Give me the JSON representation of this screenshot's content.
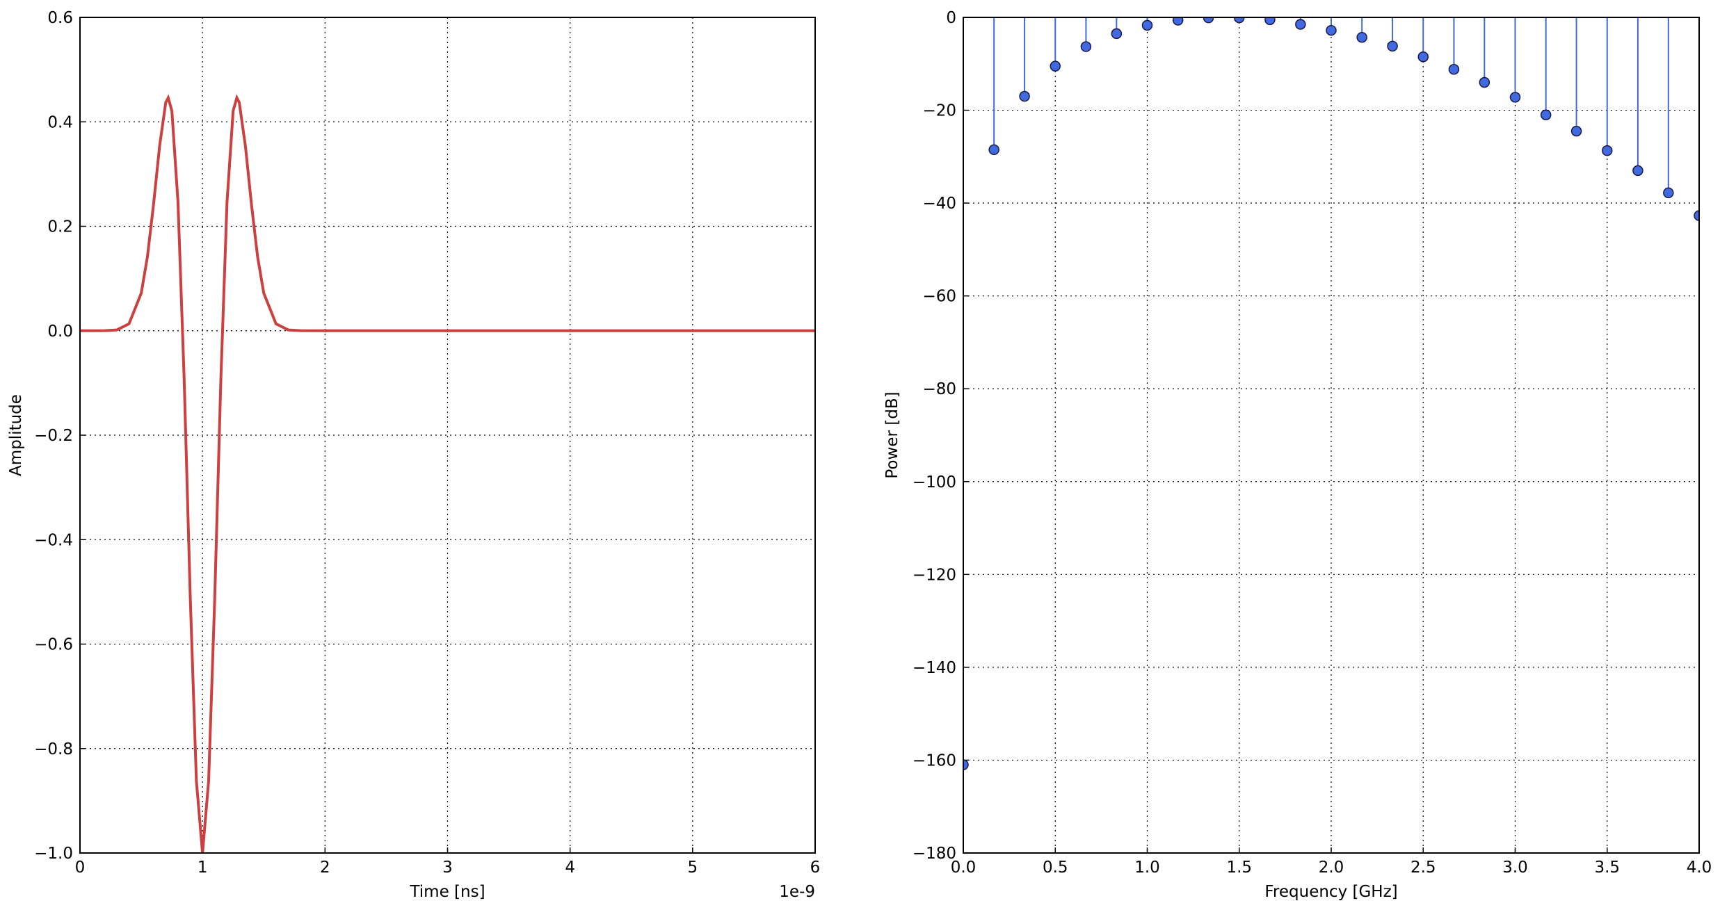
{
  "chart_data": [
    {
      "type": "line",
      "xlabel": "Time [ns]",
      "ylabel": "Amplitude",
      "x_offset_label": "1e-9",
      "xlim": [
        0,
        6
      ],
      "ylim": [
        -1.0,
        0.6
      ],
      "grid": true,
      "color": "#cc4040",
      "xticks": [
        0,
        1,
        2,
        3,
        4,
        5,
        6
      ],
      "yticks": [
        {
          "value": -1.0,
          "label": "−1.0"
        },
        {
          "value": -0.8,
          "label": "−0.8"
        },
        {
          "value": -0.6,
          "label": "−0.6"
        },
        {
          "value": -0.4,
          "label": "−0.4"
        },
        {
          "value": -0.2,
          "label": "−0.2"
        },
        {
          "value": 0.0,
          "label": "0.0"
        },
        {
          "value": 0.2,
          "label": "0.2"
        },
        {
          "value": 0.4,
          "label": "0.4"
        },
        {
          "value": 0.6,
          "label": "0.6"
        }
      ],
      "x": [
        0,
        0.2,
        0.3,
        0.4,
        0.5,
        0.55,
        0.6,
        0.65,
        0.7,
        0.72,
        0.75,
        0.8,
        0.85,
        0.9,
        0.95,
        1.0,
        1.05,
        1.1,
        1.15,
        1.2,
        1.25,
        1.28,
        1.3,
        1.35,
        1.4,
        1.45,
        1.5,
        1.6,
        1.7,
        1.8,
        2.0,
        6.0
      ],
      "values": [
        0,
        0.0001,
        0.0015,
        0.0132,
        0.072,
        0.141,
        0.241,
        0.354,
        0.437,
        0.446,
        0.421,
        0.246,
        -0.091,
        -0.51,
        -0.862,
        -1.0,
        -0.862,
        -0.51,
        -0.091,
        0.246,
        0.421,
        0.446,
        0.437,
        0.354,
        0.241,
        0.141,
        0.072,
        0.0132,
        0.0015,
        0.0001,
        0,
        0
      ]
    },
    {
      "type": "stem",
      "xlabel": "Frequency [GHz]",
      "ylabel": "Power [dB]",
      "xlim": [
        0,
        4.0
      ],
      "ylim": [
        -180,
        0
      ],
      "grid": true,
      "color": "#4169e1",
      "xticks": [
        {
          "value": 0,
          "label": "0.0"
        },
        {
          "value": 0.5,
          "label": "0.5"
        },
        {
          "value": 1,
          "label": "1.0"
        },
        {
          "value": 1.5,
          "label": "1.5"
        },
        {
          "value": 2,
          "label": "2.0"
        },
        {
          "value": 2.5,
          "label": "2.5"
        },
        {
          "value": 3,
          "label": "3.0"
        },
        {
          "value": 3.5,
          "label": "3.5"
        },
        {
          "value": 4,
          "label": "4.0"
        }
      ],
      "yticks": [
        {
          "value": -180,
          "label": "−180"
        },
        {
          "value": -160,
          "label": "−160"
        },
        {
          "value": -140,
          "label": "−140"
        },
        {
          "value": -120,
          "label": "−120"
        },
        {
          "value": -100,
          "label": "−100"
        },
        {
          "value": -80,
          "label": "−80"
        },
        {
          "value": -60,
          "label": "−60"
        },
        {
          "value": -40,
          "label": "−40"
        },
        {
          "value": -20,
          "label": "−20"
        },
        0
      ],
      "x": [
        0,
        0.167,
        0.333,
        0.5,
        0.667,
        0.833,
        1.0,
        1.167,
        1.333,
        1.5,
        1.667,
        1.833,
        2.0,
        2.167,
        2.333,
        2.5,
        2.667,
        2.833,
        3.0,
        3.167,
        3.333,
        3.5,
        3.667,
        3.833,
        4.0
      ],
      "values": [
        -161,
        -28.5,
        -17,
        -10.5,
        -6.3,
        -3.5,
        -1.7,
        -0.6,
        -0.1,
        -0.1,
        -0.5,
        -1.5,
        -2.8,
        -4.3,
        -6.2,
        -8.5,
        -11.2,
        -14,
        -17.2,
        -21,
        -24.5,
        -28.7,
        -33,
        -37.8,
        -42.7
      ]
    }
  ]
}
